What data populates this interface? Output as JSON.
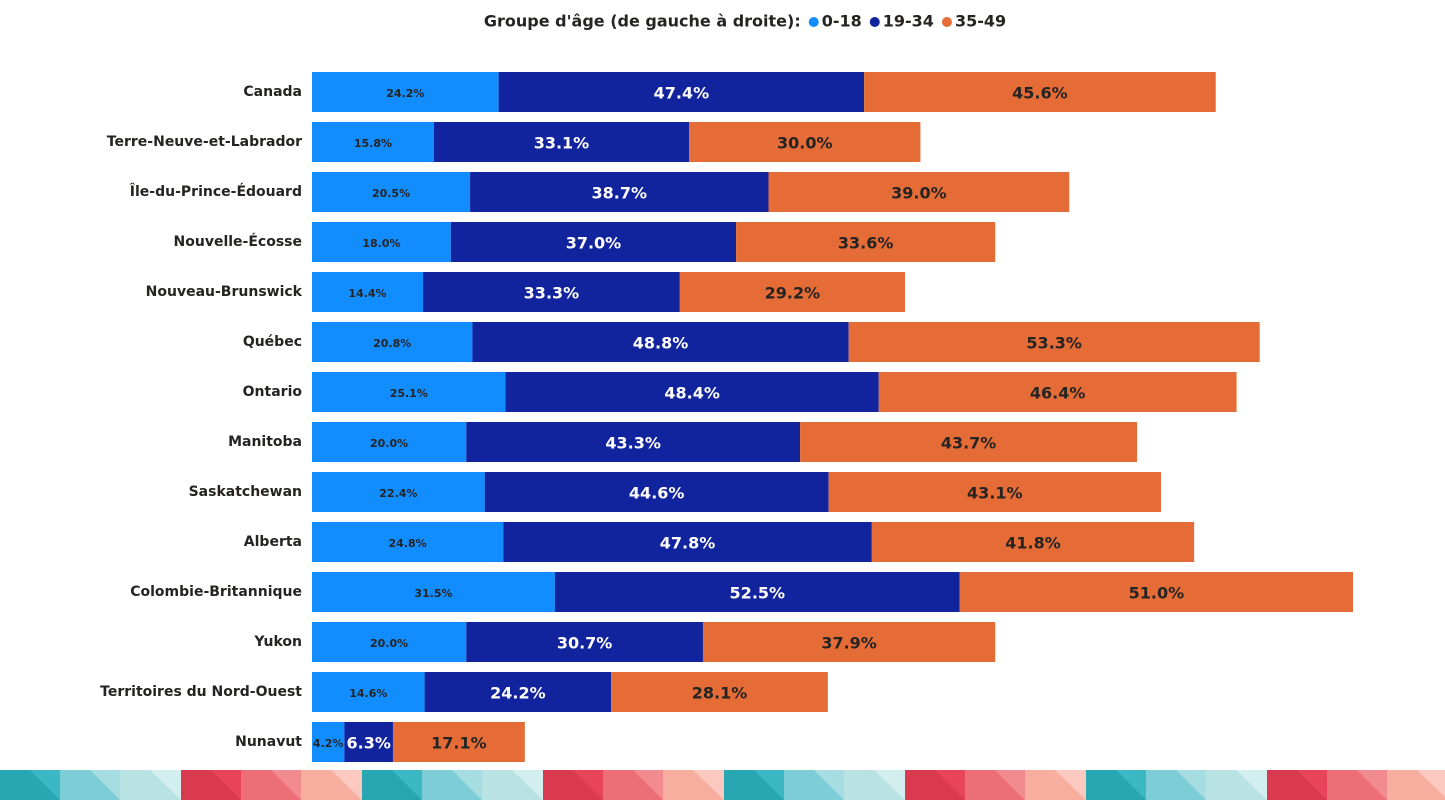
{
  "chart_data": {
    "type": "stacked_barh",
    "legend_title": "Groupe d'âge (de gauche à droite):",
    "legend": "top",
    "categories": [
      "Canada",
      "Terre-Neuve-et-Labrador",
      "Île-du-Prince-Édouard",
      "Nouvelle-Écosse",
      "Nouveau-Brunswick",
      "Québec",
      "Ontario",
      "Manitoba",
      "Saskatchewan",
      "Alberta",
      "Colombie-Britannique",
      "Yukon",
      "Territoires du Nord-Ouest",
      "Nunavut"
    ],
    "series": [
      {
        "name": "0-18",
        "color": "#118dff",
        "values": [
          24.2,
          15.8,
          20.5,
          18.0,
          14.4,
          20.8,
          25.1,
          20.0,
          22.4,
          24.8,
          31.5,
          20.0,
          14.6,
          4.2
        ],
        "value_labels": [
          "24.2%",
          "15.8%",
          "20.5%",
          "18.0%",
          "14.4%",
          "20.8%",
          "25.1%",
          "20.0%",
          "22.4%",
          "24.8%",
          "31.5%",
          "20.0%",
          "14.6%",
          "4.2%"
        ]
      },
      {
        "name": "19-34",
        "color": "#12239e",
        "values": [
          47.4,
          33.1,
          38.7,
          37.0,
          33.3,
          48.8,
          48.4,
          43.3,
          44.6,
          47.8,
          52.5,
          30.7,
          24.2,
          6.3
        ],
        "value_labels": [
          "47.4%",
          "33.1%",
          "38.7%",
          "37.0%",
          "33.3%",
          "48.8%",
          "48.4%",
          "43.3%",
          "44.6%",
          "47.8%",
          "52.5%",
          "30.7%",
          "24.2%",
          "6.3%"
        ]
      },
      {
        "name": "35-49",
        "color": "#e66c37",
        "values": [
          45.6,
          30.0,
          39.0,
          33.6,
          29.2,
          53.3,
          46.4,
          43.7,
          43.1,
          41.8,
          51.0,
          37.9,
          28.1,
          17.1
        ],
        "value_labels": [
          "45.6%",
          "30.0%",
          "39.0%",
          "33.6%",
          "29.2%",
          "53.3%",
          "46.4%",
          "43.7%",
          "43.1%",
          "41.8%",
          "51.0%",
          "37.9%",
          "28.1%",
          "17.1%"
        ]
      }
    ]
  }
}
